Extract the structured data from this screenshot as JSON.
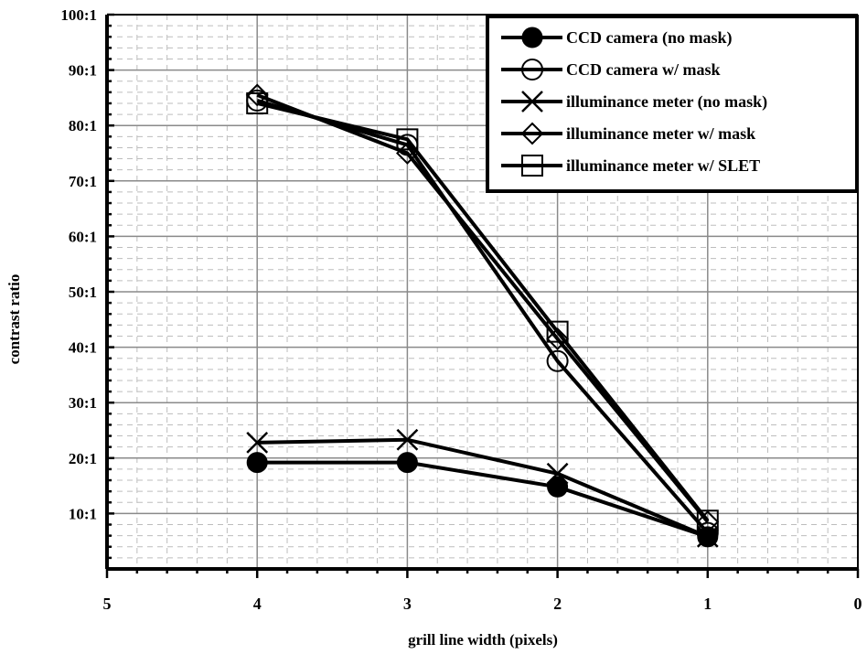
{
  "chart_data": {
    "type": "line",
    "xlabel": "grill line width (pixels)",
    "ylabel": "contrast ratio",
    "xlim": [
      5,
      0
    ],
    "ylim": [
      0,
      100
    ],
    "x_reversed": true,
    "x_ticks": [
      "5",
      "4",
      "3",
      "2",
      "1",
      "0"
    ],
    "y_ticks": [
      "10:1",
      "20:1",
      "30:1",
      "40:1",
      "50:1",
      "60:1",
      "70:1",
      "80:1",
      "90:1",
      "100:1"
    ],
    "grid": {
      "major": true,
      "minor_dashed": true
    },
    "legend_position": "top-right",
    "x": [
      4,
      3,
      2,
      1
    ],
    "series": [
      {
        "name": "CCD camera (no mask)",
        "marker": "filled-circle",
        "values": [
          19.2,
          19.2,
          14.8,
          5.8
        ]
      },
      {
        "name": "CCD camera w/ mask",
        "marker": "open-circle",
        "values": [
          84.5,
          76.5,
          37.5,
          6.5
        ]
      },
      {
        "name": "illuminance meter (no mask)",
        "marker": "x",
        "values": [
          22.8,
          23.3,
          17.2,
          5.8
        ]
      },
      {
        "name": "illuminance meter w/ mask",
        "marker": "diamond",
        "values": [
          85.5,
          75.0,
          41.5,
          8.5
        ]
      },
      {
        "name": "illuminance meter w/ SLET",
        "marker": "square",
        "values": [
          84.0,
          77.5,
          42.8,
          8.7
        ]
      }
    ]
  }
}
